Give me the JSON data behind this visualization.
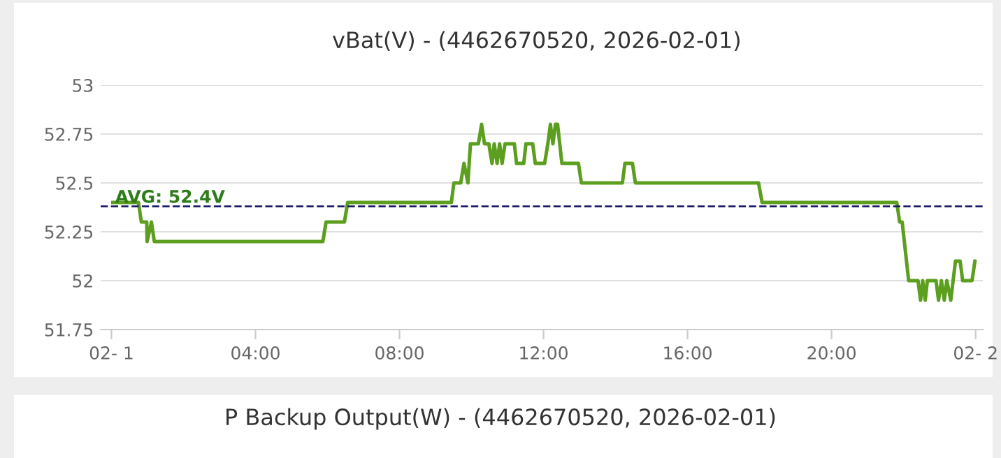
{
  "chart_data": [
    {
      "type": "line",
      "title": "vBat(V) - (4462670520, 2026-02-01)",
      "x": [
        0.04,
        0.75,
        0.83,
        0.98,
        0.99,
        1.11,
        1.19,
        5.87,
        5.96,
        6.47,
        6.56,
        9.44,
        9.51,
        9.7,
        9.79,
        9.9,
        9.97,
        10.19,
        10.28,
        10.36,
        10.48,
        10.57,
        10.63,
        10.71,
        10.78,
        10.85,
        10.93,
        11.19,
        11.25,
        11.45,
        11.51,
        11.7,
        11.77,
        12.03,
        12.12,
        12.19,
        12.26,
        12.33,
        12.39,
        12.51,
        12.97,
        13.05,
        14.19,
        14.26,
        14.47,
        14.55,
        17.97,
        18.07,
        21.81,
        21.89,
        21.96,
        22.14,
        22.4,
        22.47,
        22.53,
        22.6,
        22.66,
        22.9,
        22.97,
        23.05,
        23.13,
        23.2,
        23.31,
        23.44,
        23.57,
        23.64,
        23.9,
        23.98
      ],
      "series": [
        {
          "color": "#5c9e1e",
          "values": [
            52.4,
            52.4,
            52.3,
            52.3,
            52.2,
            52.3,
            52.2,
            52.2,
            52.3,
            52.3,
            52.4,
            52.4,
            52.5,
            52.5,
            52.6,
            52.5,
            52.7,
            52.7,
            52.8,
            52.7,
            52.7,
            52.6,
            52.7,
            52.6,
            52.7,
            52.6,
            52.7,
            52.7,
            52.6,
            52.6,
            52.7,
            52.7,
            52.6,
            52.6,
            52.7,
            52.8,
            52.7,
            52.8,
            52.8,
            52.6,
            52.6,
            52.5,
            52.5,
            52.6,
            52.6,
            52.5,
            52.5,
            52.4,
            52.4,
            52.3,
            52.3,
            52.0,
            52.0,
            51.9,
            52.0,
            51.9,
            52.0,
            52.0,
            51.9,
            52.0,
            51.9,
            52.0,
            51.9,
            52.1,
            52.1,
            52.0,
            52.0,
            52.1
          ]
        }
      ],
      "xlim": [
        -0.3,
        24.2
      ],
      "xticks": [
        {
          "value": 0,
          "label": "02- 1"
        },
        {
          "value": 4,
          "label": "04:00"
        },
        {
          "value": 8,
          "label": "08:00"
        },
        {
          "value": 12,
          "label": "12:00"
        },
        {
          "value": 16,
          "label": "16:00"
        },
        {
          "value": 20,
          "label": "20:00"
        },
        {
          "value": 24,
          "label": "02- 2"
        }
      ],
      "ylim": [
        51.75,
        53
      ],
      "yticks": [
        51.75,
        52,
        52.25,
        52.5,
        52.75,
        53
      ],
      "grid": "y",
      "legend": false,
      "marker": "none",
      "line_style": "solid",
      "ref_lines": [
        {
          "axis": "y",
          "value": 52.38,
          "label": "AVG: 52.4V",
          "color": "#1c1c6b",
          "line_style": "dashed"
        }
      ]
    },
    {
      "type": "other",
      "title": "P Backup Output(W) - (4462670520, 2026-02-01)"
    }
  ]
}
